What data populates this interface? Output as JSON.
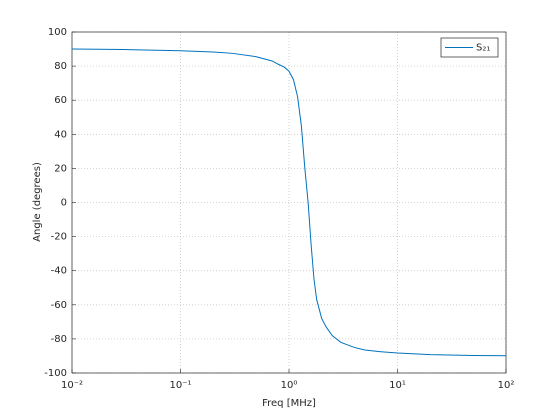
{
  "chart_data": {
    "type": "line",
    "xlabel": "Freq [MHz]",
    "ylabel": "Angle (degrees)",
    "x": [
      0.01,
      0.03,
      0.1,
      0.2,
      0.3,
      0.5,
      0.7,
      0.8,
      0.9,
      1.0,
      1.1,
      1.2,
      1.3,
      1.4,
      1.5,
      1.6,
      1.7,
      1.8,
      2.0,
      2.2,
      2.5,
      3.0,
      4.0,
      5.0,
      7.0,
      10,
      20,
      50,
      100
    ],
    "series": [
      {
        "name": "S₂₁",
        "color": "#0072bd",
        "values": [
          90,
          89.7,
          89,
          88.3,
          87.5,
          85.5,
          83,
          81,
          79.5,
          77,
          72,
          62,
          45,
          20,
          0,
          -25,
          -45,
          -57,
          -68,
          -73,
          -78,
          -82,
          -85,
          -86.5,
          -87.5,
          -88.3,
          -89.2,
          -89.7,
          -89.9
        ]
      }
    ],
    "xlim": [
      0.01,
      100
    ],
    "ylim": [
      -100,
      100
    ],
    "xlog": true,
    "xticks": [
      {
        "value": 0.01,
        "label": "10⁻²"
      },
      {
        "value": 0.1,
        "label": "10⁻¹"
      },
      {
        "value": 1,
        "label": "10⁰"
      },
      {
        "value": 10,
        "label": "10¹"
      },
      {
        "value": 100,
        "label": "10²"
      }
    ],
    "yticks": [
      -100,
      -80,
      -60,
      -40,
      -20,
      0,
      20,
      40,
      60,
      80,
      100
    ],
    "grid": true,
    "legend": "top-right"
  }
}
